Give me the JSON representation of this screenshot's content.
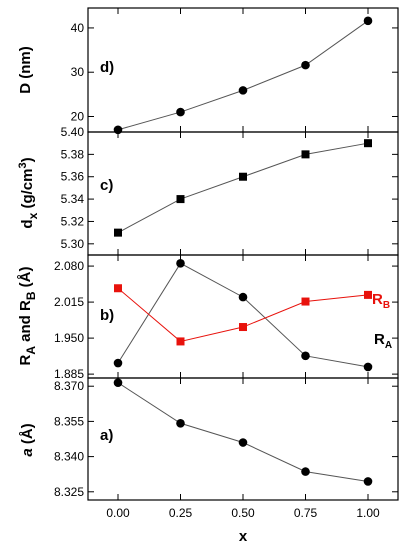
{
  "chart_data": [
    {
      "type": "line",
      "panel_label": "d)",
      "ylabel": "D (nm)",
      "x": [
        0.0,
        0.25,
        0.5,
        0.75,
        1.0
      ],
      "xlim": [
        -0.12,
        1.12
      ],
      "ylim": [
        16.5,
        44.5
      ],
      "yticks": [
        20,
        30,
        40
      ],
      "ytick_labels": [
        "20",
        "30",
        "40"
      ],
      "series": [
        {
          "values": [
            17.0,
            21.0,
            25.9,
            31.6,
            41.6
          ],
          "marker": "circle",
          "color": "#000000",
          "line_color": "#555555"
        }
      ]
    },
    {
      "type": "line",
      "panel_label": "c)",
      "ylabel_main": "d",
      "ylabel_sub": "x",
      "ylabel_rest": " (g/cm",
      "ylabel_sup": "3",
      "ylabel_end": ")",
      "x": [
        0.0,
        0.25,
        0.5,
        0.75,
        1.0
      ],
      "xlim": [
        -0.12,
        1.12
      ],
      "ylim": [
        5.29,
        5.4
      ],
      "yticks": [
        5.3,
        5.32,
        5.34,
        5.36,
        5.38,
        5.4
      ],
      "ytick_labels": [
        "5.30",
        "5.32",
        "5.34",
        "5.36",
        "5.38",
        "5.40"
      ],
      "series": [
        {
          "values": [
            5.31,
            5.34,
            5.36,
            5.38,
            5.39
          ],
          "marker": "square",
          "color": "#000000",
          "line_color": "#555555"
        }
      ]
    },
    {
      "type": "line",
      "panel_label": "b)",
      "ylabel_parts": [
        "R",
        "A",
        " and R",
        "B",
        " (Å)"
      ],
      "x": [
        0.0,
        0.25,
        0.5,
        0.75,
        1.0
      ],
      "xlim": [
        -0.12,
        1.12
      ],
      "ylim": [
        1.878,
        2.1
      ],
      "yticks": [
        1.885,
        1.95,
        2.015,
        2.08
      ],
      "ytick_labels": [
        "1.885",
        "1.950",
        "2.015",
        "2.080"
      ],
      "series": [
        {
          "name_main": "R",
          "name_sub": "A",
          "values": [
            1.905,
            2.085,
            2.024,
            1.918,
            1.898
          ],
          "marker": "circle",
          "color": "#000000",
          "line_color": "#555555"
        },
        {
          "name_main": "R",
          "name_sub": "B",
          "values": [
            2.04,
            1.944,
            1.97,
            2.016,
            2.028
          ],
          "marker": "square",
          "color": "#e8120c",
          "line_color": "#e8120c"
        }
      ]
    },
    {
      "type": "line",
      "panel_label": "a)",
      "ylabel_italic": "a",
      "ylabel_rest": " (Å)",
      "x": [
        0.0,
        0.25,
        0.5,
        0.75,
        1.0
      ],
      "xlim": [
        -0.12,
        1.12
      ],
      "ylim": [
        8.3215,
        8.3735
      ],
      "yticks": [
        8.325,
        8.34,
        8.355,
        8.37
      ],
      "ytick_labels": [
        "8.325",
        "8.340",
        "8.355",
        "8.370"
      ],
      "series": [
        {
          "values": [
            8.3715,
            8.3542,
            8.346,
            8.3336,
            8.3294
          ],
          "marker": "circle",
          "color": "#000000",
          "line_color": "#555555"
        }
      ]
    }
  ],
  "xaxis": {
    "label": "x",
    "ticks": [
      0.0,
      0.25,
      0.5,
      0.75,
      1.0
    ],
    "tick_labels": [
      "0.00",
      "0.25",
      "0.50",
      "0.75",
      "1.00"
    ]
  }
}
